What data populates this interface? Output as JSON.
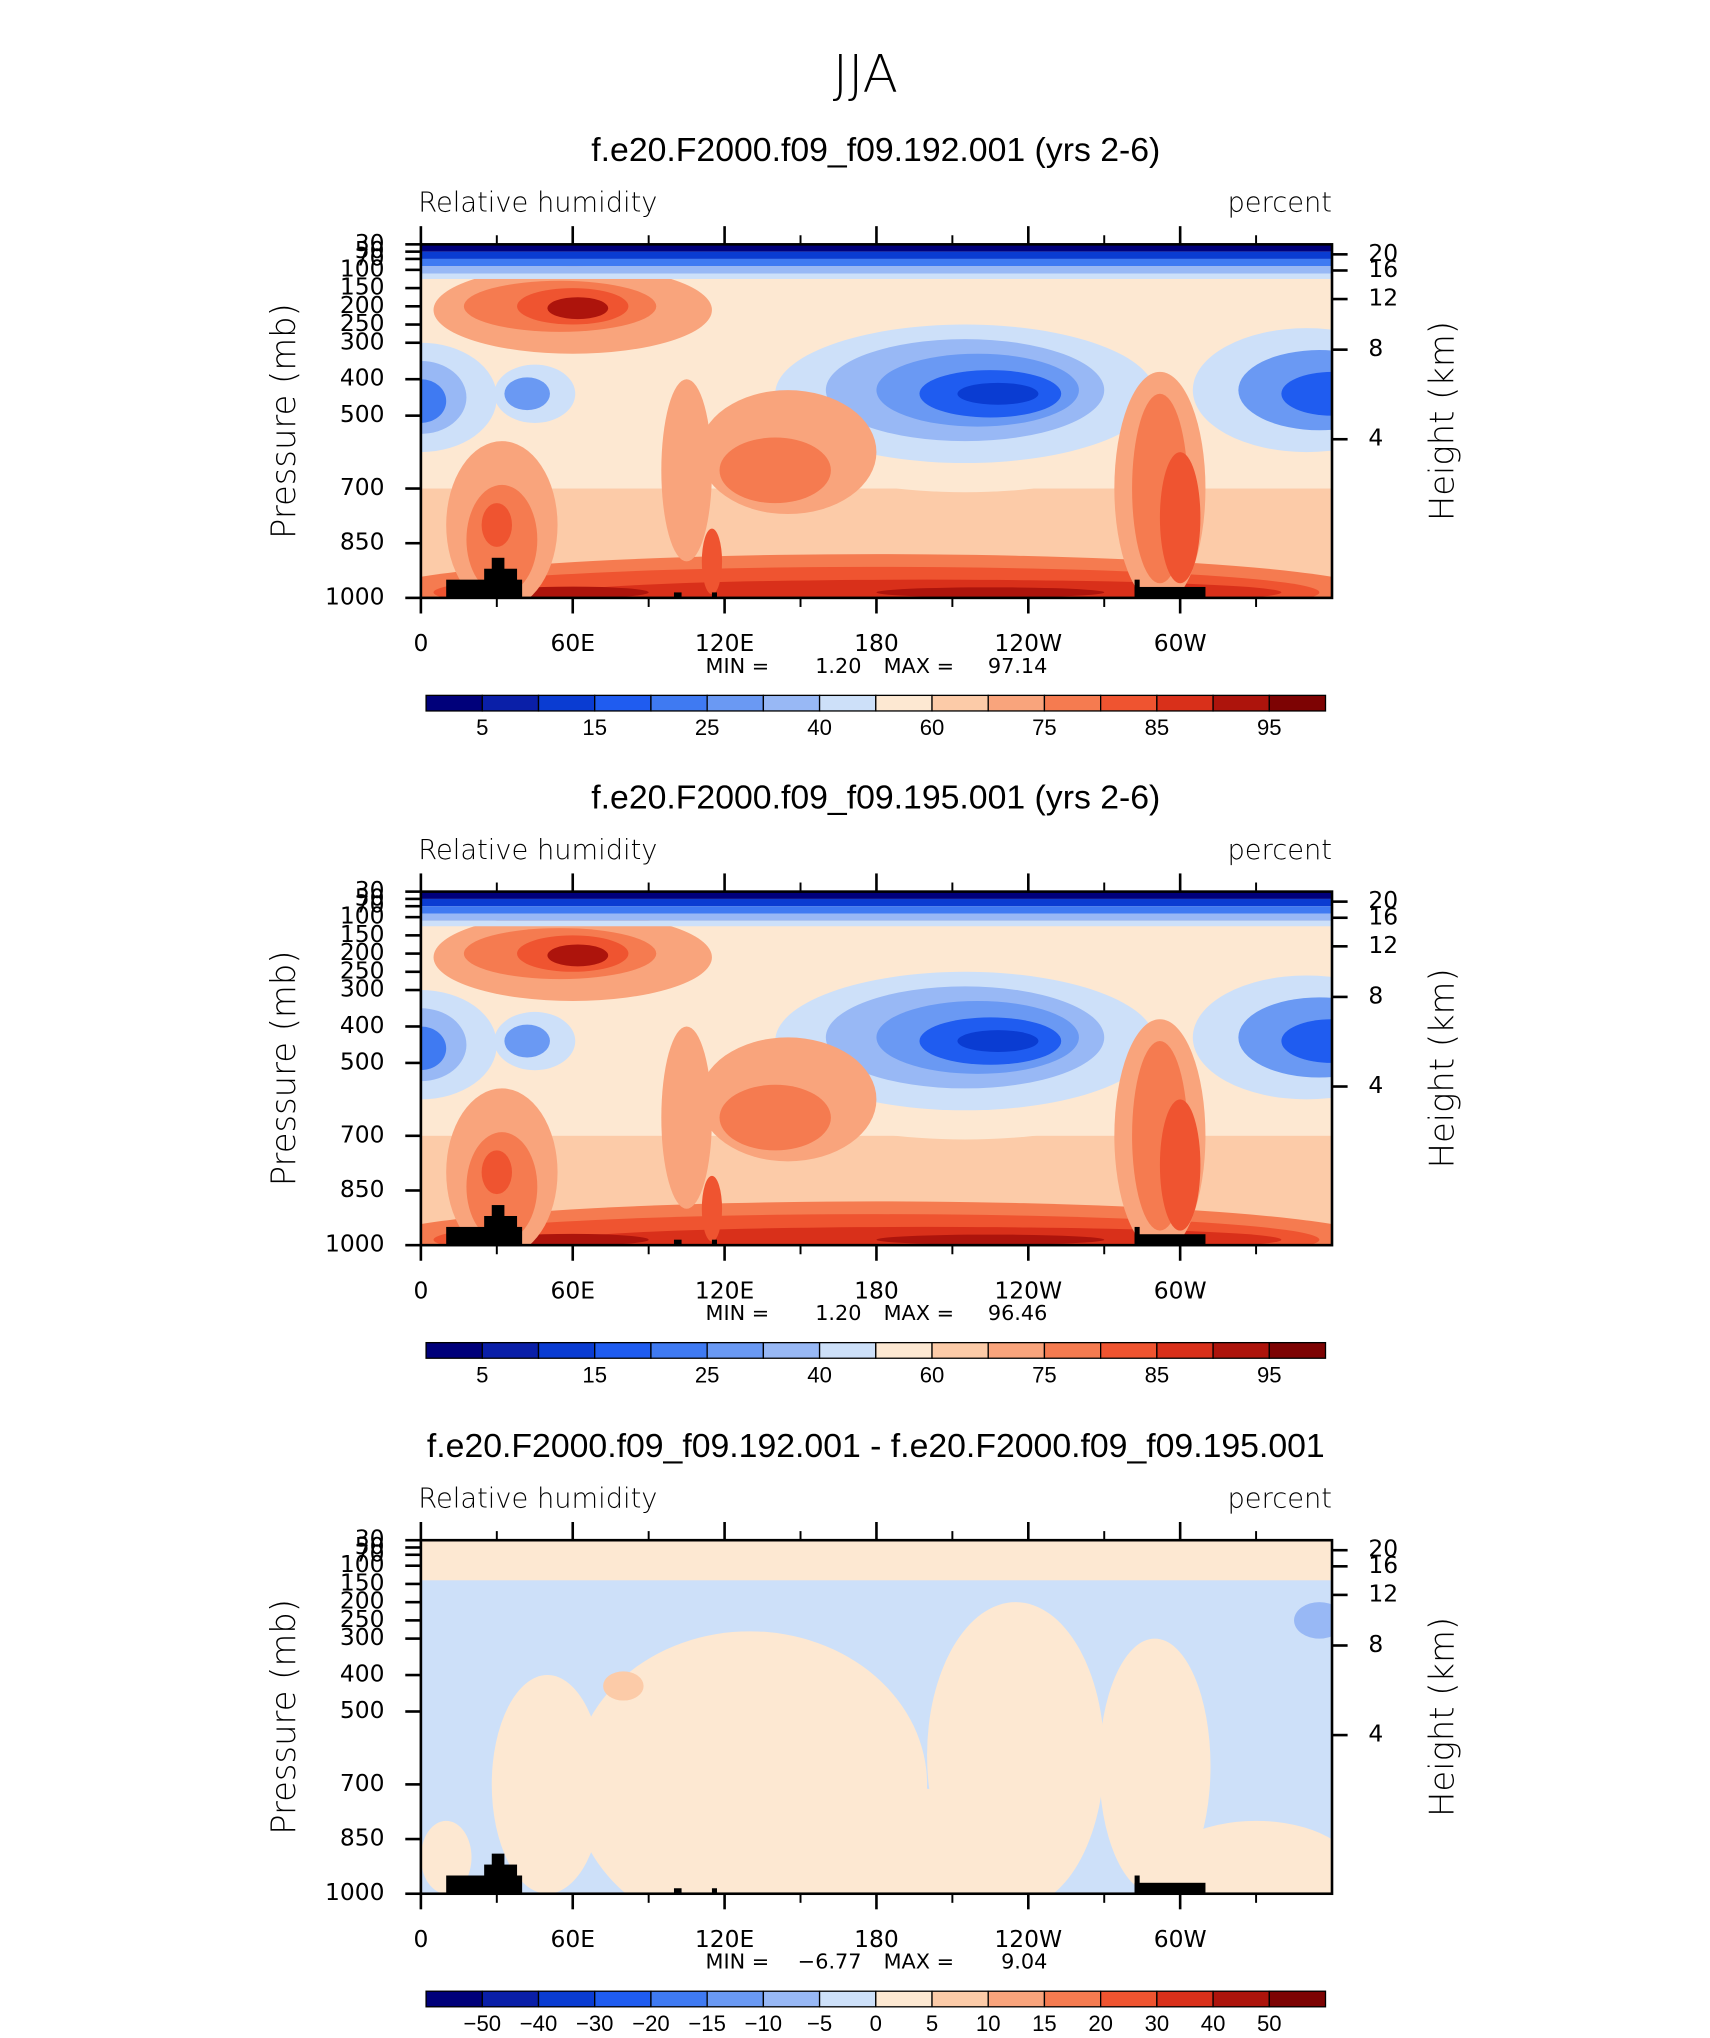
{
  "title": "JJA",
  "chart_data": [
    {
      "type": "contour",
      "title": "f.e20.F2000.f09_f09.192.001 (yrs 2-6)",
      "subtitle_left": "Relative humidity",
      "subtitle_right": "percent",
      "ylabel": "Pressure (mb)",
      "y2label": "Height (km)",
      "xlim": [
        0,
        360
      ],
      "xticks": [
        {
          "value": 0,
          "label": "0"
        },
        {
          "value": 60,
          "label": "60E"
        },
        {
          "value": 120,
          "label": "120E"
        },
        180,
        {
          "value": 240,
          "label": "120W"
        },
        {
          "value": 300,
          "label": "60W"
        }
      ],
      "xminorticks": [
        30,
        90,
        150,
        210,
        270,
        330
      ],
      "ylim": [
        1000,
        30
      ],
      "yticks": [
        1000,
        850,
        700,
        500,
        400,
        300,
        250,
        200,
        150,
        100,
        70,
        50,
        30
      ],
      "y2ticks": [
        4,
        8,
        12,
        16,
        20
      ],
      "min": {
        "name": "MIN =",
        "value": 1.2,
        "label": "1.20"
      },
      "max": {
        "name": "MAX =",
        "value": 97.14,
        "label": "97.14"
      },
      "colorbar": {
        "colors": [
          "#00007a",
          "#0a1fa8",
          "#0a3cd2",
          "#1f5cf0",
          "#3f7af2",
          "#6a99f3",
          "#98b8f5",
          "#cde0f9",
          "#fde8d2",
          "#fccba8",
          "#f9a47c",
          "#f57b50",
          "#ef5430",
          "#d9301a",
          "#ad140c",
          "#7d0303"
        ],
        "ticks": [
          5,
          15,
          25,
          40,
          60,
          75,
          85,
          95
        ]
      }
    },
    {
      "type": "contour",
      "title": "f.e20.F2000.f09_f09.195.001 (yrs 2-6)",
      "subtitle_left": "Relative humidity",
      "subtitle_right": "percent",
      "ylabel": "Pressure (mb)",
      "y2label": "Height (km)",
      "xlim": [
        0,
        360
      ],
      "xticks": [
        {
          "value": 0,
          "label": "0"
        },
        {
          "value": 60,
          "label": "60E"
        },
        {
          "value": 120,
          "label": "120E"
        },
        180,
        {
          "value": 240,
          "label": "120W"
        },
        {
          "value": 300,
          "label": "60W"
        }
      ],
      "xminorticks": [
        30,
        90,
        150,
        210,
        270,
        330
      ],
      "ylim": [
        1000,
        30
      ],
      "yticks": [
        1000,
        850,
        700,
        500,
        400,
        300,
        250,
        200,
        150,
        100,
        70,
        50,
        30
      ],
      "y2ticks": [
        4,
        8,
        12,
        16,
        20
      ],
      "min": {
        "name": "MIN =",
        "value": 1.2,
        "label": "1.20"
      },
      "max": {
        "name": "MAX =",
        "value": 96.46,
        "label": "96.46"
      },
      "colorbar": {
        "colors": [
          "#00007a",
          "#0a1fa8",
          "#0a3cd2",
          "#1f5cf0",
          "#3f7af2",
          "#6a99f3",
          "#98b8f5",
          "#cde0f9",
          "#fde8d2",
          "#fccba8",
          "#f9a47c",
          "#f57b50",
          "#ef5430",
          "#d9301a",
          "#ad140c",
          "#7d0303"
        ],
        "ticks": [
          5,
          15,
          25,
          40,
          60,
          75,
          85,
          95
        ]
      }
    },
    {
      "type": "contour",
      "title": "f.e20.F2000.f09_f09.192.001 - f.e20.F2000.f09_f09.195.001",
      "subtitle_left": "Relative humidity",
      "subtitle_right": "percent",
      "ylabel": "Pressure (mb)",
      "y2label": "Height (km)",
      "xlim": [
        0,
        360
      ],
      "xticks": [
        {
          "value": 0,
          "label": "0"
        },
        {
          "value": 60,
          "label": "60E"
        },
        {
          "value": 120,
          "label": "120E"
        },
        180,
        {
          "value": 240,
          "label": "120W"
        },
        {
          "value": 300,
          "label": "60W"
        }
      ],
      "xminorticks": [
        30,
        90,
        150,
        210,
        270,
        330
      ],
      "ylim": [
        1000,
        30
      ],
      "yticks": [
        1000,
        850,
        700,
        500,
        400,
        300,
        250,
        200,
        150,
        100,
        70,
        50,
        30
      ],
      "y2ticks": [
        4,
        8,
        12,
        16,
        20
      ],
      "min": {
        "name": "MIN =",
        "value": -6.77,
        "label": "−6.77"
      },
      "max": {
        "name": "MAX =",
        "value": 9.04,
        "label": "9.04"
      },
      "colorbar": {
        "colors": [
          "#00007a",
          "#0a1fa8",
          "#0a3cd2",
          "#1f5cf0",
          "#3f7af2",
          "#6a99f3",
          "#98b8f5",
          "#cde0f9",
          "#fde8d2",
          "#fccba8",
          "#f9a47c",
          "#f57b50",
          "#ef5430",
          "#d9301a",
          "#ad140c",
          "#7d0303"
        ],
        "ticks": [
          {
            "value": -50,
            "label": "−50"
          },
          {
            "value": -40,
            "label": "−40"
          },
          {
            "value": -30,
            "label": "−30"
          },
          {
            "value": -20,
            "label": "−20"
          },
          {
            "value": -15,
            "label": "−15"
          },
          {
            "value": -10,
            "label": "−10"
          },
          {
            "value": -5,
            "label": "−5"
          },
          0,
          5,
          10,
          15,
          20,
          30,
          40,
          50
        ]
      }
    }
  ]
}
